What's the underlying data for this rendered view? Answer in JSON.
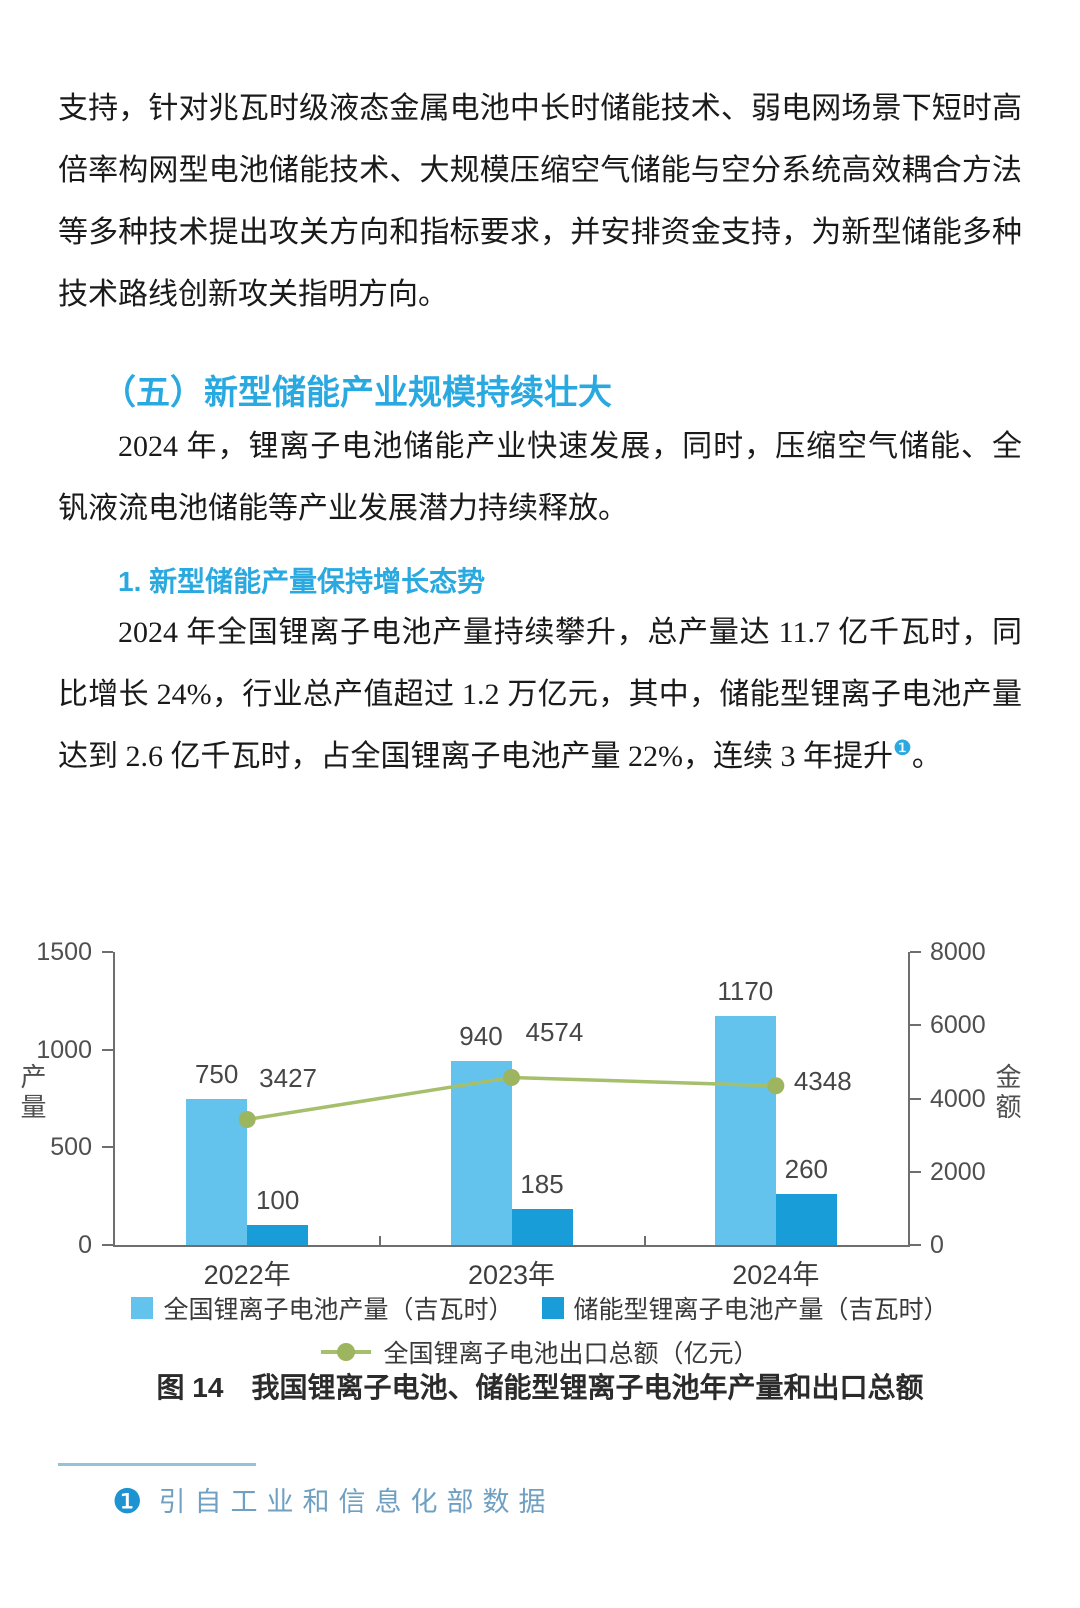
{
  "paragraphs": {
    "p1": "支持，针对兆瓦时级液态金属电池中长时储能技术、弱电网场景下短时高倍率构网型电池储能技术、大规模压缩空气储能与空分系统高效耦合方法等多种技术提出攻关方向和指标要求，并安排资金支持，为新型储能多种技术路线创新攻关指明方向。",
    "h1": "（五）新型储能产业规模持续壮大",
    "p2": "2024 年，锂离子电池储能产业快速发展，同时，压缩空气储能、全钒液流电池储能等产业发展潜力持续释放。",
    "h2": "1. 新型储能产量保持增长态势",
    "p3_before": "2024 年全国锂离子电池产量持续攀升，总产量达 11.7 亿千瓦时，同比增长 24%，行业总产值超过 1.2 万亿元，其中，储能型锂离子电池产量达到 2.6 亿千瓦时，占全国锂离子电池产量 22%，连续 3 年提升",
    "p3_marker": "❶",
    "p3_after": "。"
  },
  "chart_data": {
    "type": "bar+line",
    "categories": [
      "2022年",
      "2023年",
      "2024年"
    ],
    "series": [
      {
        "name": "全国锂离子电池产量（吉瓦时）",
        "type": "bar",
        "axis": "left",
        "color": "#63c3ed",
        "values": [
          750,
          940,
          1170
        ]
      },
      {
        "name": "储能型锂离子电池产量（吉瓦时）",
        "type": "bar",
        "axis": "left",
        "color": "#199dd9",
        "values": [
          100,
          185,
          260
        ]
      },
      {
        "name": "全国锂离子电池出口总额（亿元）",
        "type": "line",
        "axis": "right",
        "color": "#a6bf6c",
        "marker_color": "#9db55e",
        "values": [
          3427,
          4574,
          4348
        ]
      }
    ],
    "left_axis": {
      "label": "产量",
      "range": [
        0,
        1500
      ],
      "ticks": [
        0,
        500,
        1000,
        1500
      ]
    },
    "right_axis": {
      "label": "金额",
      "range": [
        0,
        8000
      ],
      "ticks": [
        0,
        2000,
        4000,
        6000,
        8000
      ]
    },
    "grid": false,
    "legend_position": "bottom"
  },
  "figure": {
    "caption": "图 14　我国锂离子电池、储能型锂离子电池年产量和出口总额"
  },
  "footnote": {
    "marker": "❶",
    "text": "引自工业和信息化部数据"
  },
  "colors": {
    "heading": "#29a9e0",
    "body": "#1a1a1a",
    "footnote": "#6fa0c2"
  }
}
